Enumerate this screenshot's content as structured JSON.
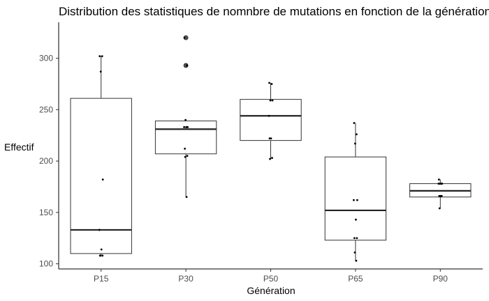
{
  "chart_data": {
    "type": "boxplot",
    "title": "Distribution des statistiques de nomnbre de mutations en fonction de la génération",
    "xlabel": "Génération",
    "ylabel": "Effectif",
    "ylim": [
      95,
      335
    ],
    "yticks": [
      100,
      150,
      200,
      250,
      300
    ],
    "grid": false,
    "legend": "none",
    "categories": [
      "P15",
      "P30",
      "P50",
      "P65",
      "P90"
    ],
    "boxes": [
      {
        "category": "P15",
        "q1": 110,
        "median": 133,
        "q3": 261,
        "whisker_low": 108,
        "whisker_high": 302,
        "outliers": []
      },
      {
        "category": "P30",
        "q1": 207,
        "median": 231,
        "q3": 239,
        "whisker_low": 165,
        "whisker_high": 240,
        "outliers": [
          293,
          320
        ]
      },
      {
        "category": "P50",
        "q1": 220,
        "median": 244,
        "q3": 260,
        "whisker_low": 202,
        "whisker_high": 276,
        "outliers": []
      },
      {
        "category": "P65",
        "q1": 123,
        "median": 152,
        "q3": 204,
        "whisker_low": 103,
        "whisker_high": 237,
        "outliers": []
      },
      {
        "category": "P90",
        "q1": 165,
        "median": 171,
        "q3": 178,
        "whisker_low": 154,
        "whisker_high": 182,
        "outliers": []
      }
    ],
    "points": [
      {
        "category": "P15",
        "values": [
          302,
          302,
          287,
          182,
          133,
          114,
          108,
          108,
          108
        ]
      },
      {
        "category": "P30",
        "values": [
          320,
          293,
          240,
          233,
          233,
          233,
          212,
          205,
          204,
          165
        ]
      },
      {
        "category": "P50",
        "values": [
          276,
          275,
          259,
          259,
          244,
          222,
          222,
          203,
          202
        ]
      },
      {
        "category": "P65",
        "values": [
          237,
          226,
          217,
          162,
          162,
          143,
          125,
          125,
          111,
          103
        ]
      },
      {
        "category": "P90",
        "values": [
          182,
          178,
          178,
          178,
          178,
          166,
          166,
          166,
          154
        ]
      }
    ]
  }
}
